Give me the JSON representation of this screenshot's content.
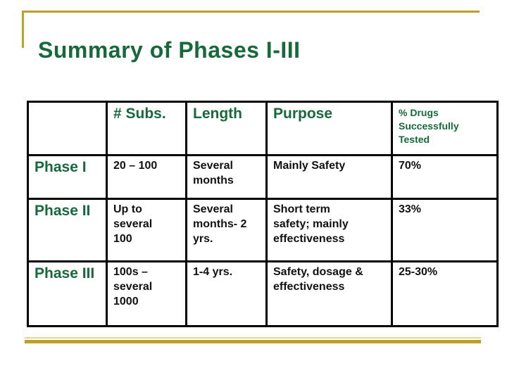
{
  "slide": {
    "title": "Summary of Phases I-III",
    "colors": {
      "title_green": "#17693c",
      "accent_gold": "#bda126",
      "accent_gold_light": "#e2d693",
      "table_border": "#000000",
      "body_text": "#111111"
    }
  },
  "table": {
    "headers": [
      "",
      "# Subs.",
      "Length",
      "Purpose",
      "% Drugs\nSuccessfully\nTested"
    ],
    "rows": [
      [
        "Phase I",
        "20 – 100",
        "Several\nmonths",
        "Mainly Safety",
        "70%"
      ],
      [
        "Phase II",
        "Up to\nseveral\n100",
        "Several\nmonths- 2\nyrs.",
        "Short term\nsafety; mainly\neffectiveness",
        "33%"
      ],
      [
        "Phase III",
        "100s –\nseveral\n1000",
        "1-4 yrs.",
        "Safety, dosage &\neffectiveness",
        "25-30%"
      ]
    ]
  }
}
